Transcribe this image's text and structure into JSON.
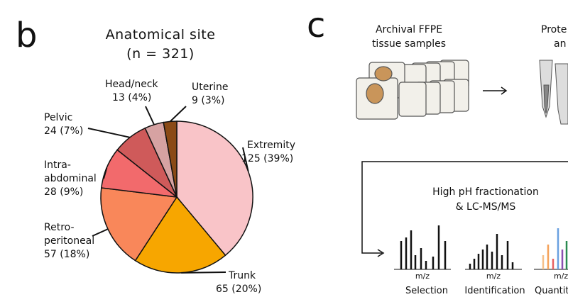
{
  "panel_labels": [
    "b",
    "c"
  ],
  "chart_data": {
    "type": "pie",
    "title": "Anatomical site",
    "subtitle": "(n = 321)",
    "categories": [
      [
        "Extremity"
      ],
      [
        "Trunk"
      ],
      [
        "Retro-",
        "peritoneal"
      ],
      [
        "Intra-",
        "abdominal"
      ],
      [
        "Pelvic"
      ],
      [
        "Head/neck"
      ],
      [
        "Uterine"
      ]
    ],
    "values": [
      125,
      65,
      57,
      28,
      24,
      13,
      9
    ],
    "value_labels": [
      "125 (39%)",
      "65 (20%)",
      "57 (18%)",
      "28 (9%)",
      "24 (7%)",
      "13 (4%)",
      "9 (3%)"
    ],
    "colors": [
      "#f9c4c8",
      "#f7a600",
      "#f9875a",
      "#f26a6c",
      "#cf5a5a",
      "#d6a2a2",
      "#8a4a16"
    ]
  },
  "diagram": {
    "step1": [
      "Archival FFPE",
      "tissue samples"
    ],
    "step2": [
      "Prote",
      "an"
    ],
    "step3": [
      "High pH fractionation",
      "& LC-MS/MS"
    ],
    "axis_label": [
      "m/z",
      "m/z",
      "m/z"
    ],
    "modes": [
      "Selection",
      "Identification",
      "Quantit"
    ]
  }
}
